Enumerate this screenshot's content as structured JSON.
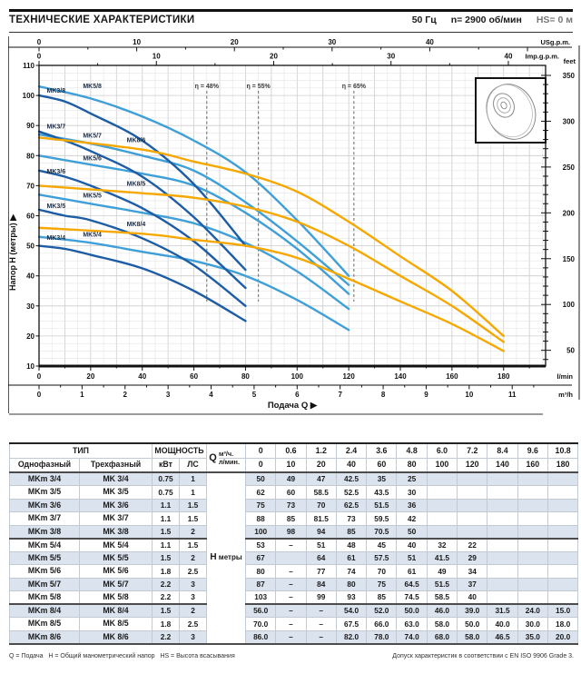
{
  "header": {
    "title": "ТЕХНИЧЕСКИЕ ХАРАКТЕРИСТИКИ",
    "frequency": "50 Гц",
    "speed": "n= 2900 об/мин",
    "suction": "HS= 0 м"
  },
  "chart_data": {
    "type": "line",
    "x_label": "Подача Q",
    "x_arrow": "▶",
    "y_label": "Напор H (метры)",
    "y_arrow": "▶",
    "xlim_lmin": [
      0,
      196
    ],
    "ylim_m": [
      10,
      110
    ],
    "flows_lmin": [
      0,
      10,
      20,
      40,
      60,
      80,
      100,
      120,
      140,
      160,
      180
    ],
    "axes": {
      "top_us": {
        "label": "USg.p.m.",
        "ticks": [
          0,
          10,
          20,
          30,
          40
        ]
      },
      "top_imp": {
        "label": "Imp.g.p.m.",
        "ticks": [
          0,
          10,
          20,
          30,
          40
        ]
      },
      "left": {
        "label": "Напор H (метры)",
        "ticks": [
          110,
          100,
          90,
          80,
          70,
          60,
          50,
          40,
          30,
          20,
          10
        ]
      },
      "right": {
        "label": "feet",
        "ticks": [
          350,
          300,
          250,
          200,
          150,
          100,
          50
        ]
      },
      "bottom_lmin": {
        "label": "l/min",
        "ticks": [
          0,
          20,
          40,
          60,
          80,
          100,
          120,
          140,
          160,
          180
        ]
      },
      "bottom_m3h": {
        "label": "m³/h",
        "ticks": [
          0,
          1,
          2,
          3,
          4,
          5,
          6,
          7,
          8,
          9,
          10,
          11
        ]
      }
    },
    "efficiency_lines": [
      {
        "label": "η = 48%",
        "q_lmin": 65
      },
      {
        "label": "η = 55%",
        "q_lmin": 85
      },
      {
        "label": "η = 65%",
        "q_lmin": 122
      }
    ],
    "colors": {
      "mk3": "#1d5da6",
      "mk5": "#3f9fd8",
      "mk8": "#f6a800"
    },
    "series": [
      {
        "single": "MKm 3/4",
        "three": "MK 3/4",
        "kw": "0.75",
        "hp": "1",
        "group": "mk3",
        "curve_label": "MK3/4",
        "label_q": 3,
        "label_h": 52,
        "heads": [
          "50",
          "49",
          "47",
          "42.5",
          "35",
          "25",
          "",
          "",
          "",
          "",
          ""
        ]
      },
      {
        "single": "MKm 3/5",
        "three": "MK 3/5",
        "kw": "0.75",
        "hp": "1",
        "group": "mk3",
        "curve_label": "MK3/5",
        "label_q": 3,
        "label_h": 62.5,
        "heads": [
          "62",
          "60",
          "58.5",
          "52.5",
          "43.5",
          "30",
          "",
          "",
          "",
          "",
          ""
        ]
      },
      {
        "single": "MKm 3/6",
        "three": "MK 3/6",
        "kw": "1.1",
        "hp": "1.5",
        "group": "mk3",
        "curve_label": "MK3/6",
        "label_q": 3,
        "label_h": 74,
        "heads": [
          "75",
          "73",
          "70",
          "62.5",
          "51.5",
          "36",
          "",
          "",
          "",
          "",
          ""
        ]
      },
      {
        "single": "MKm 3/7",
        "three": "MK 3/7",
        "kw": "1.1",
        "hp": "1.5",
        "group": "mk3",
        "curve_label": "MK3/7",
        "label_q": 3,
        "label_h": 89,
        "heads": [
          "88",
          "85",
          "81.5",
          "73",
          "59.5",
          "42",
          "",
          "",
          "",
          "",
          ""
        ]
      },
      {
        "single": "MKm 3/8",
        "three": "MK 3/8",
        "kw": "1.5",
        "hp": "2",
        "group": "mk3",
        "curve_label": "MK3/8",
        "label_q": 3,
        "label_h": 101,
        "heads": [
          "100",
          "98",
          "94",
          "85",
          "70.5",
          "50",
          "",
          "",
          "",
          "",
          ""
        ]
      },
      {
        "single": "MKm 5/4",
        "three": "MK 5/4",
        "kw": "1.1",
        "hp": "1.5",
        "group": "mk5",
        "curve_label": "MK5/4",
        "label_q": 17,
        "label_h": 53,
        "heads": [
          "53",
          "–",
          "51",
          "48",
          "45",
          "40",
          "32",
          "22",
          "",
          "",
          ""
        ]
      },
      {
        "single": "MKm 5/5",
        "three": "MK 5/5",
        "kw": "1.5",
        "hp": "2",
        "group": "mk5",
        "curve_label": "MK5/5",
        "label_q": 17,
        "label_h": 66,
        "heads": [
          "67",
          "",
          "64",
          "61",
          "57.5",
          "51",
          "41.5",
          "29",
          "",
          "",
          ""
        ]
      },
      {
        "single": "MKm 5/6",
        "three": "MK 5/6",
        "kw": "1.8",
        "hp": "2.5",
        "group": "mk5",
        "curve_label": "MK5/6",
        "label_q": 17,
        "label_h": 78.5,
        "heads": [
          "80",
          "–",
          "77",
          "74",
          "70",
          "61",
          "49",
          "34",
          "",
          "",
          ""
        ]
      },
      {
        "single": "MKm 5/7",
        "three": "MK 5/7",
        "kw": "2.2",
        "hp": "3",
        "group": "mk5",
        "curve_label": "MK5/7",
        "label_q": 17,
        "label_h": 86,
        "heads": [
          "87",
          "–",
          "84",
          "80",
          "75",
          "64.5",
          "51.5",
          "37",
          "",
          "",
          ""
        ]
      },
      {
        "single": "MKm 5/8",
        "three": "MK 5/8",
        "kw": "2.2",
        "hp": "3",
        "group": "mk5",
        "curve_label": "MK5/8",
        "label_q": 17,
        "label_h": 102.5,
        "heads": [
          "103",
          "–",
          "99",
          "93",
          "85",
          "74.5",
          "58.5",
          "40",
          "",
          "",
          ""
        ]
      },
      {
        "single": "MKm 8/4",
        "three": "MK 8/4",
        "kw": "1.5",
        "hp": "2",
        "group": "mk8",
        "curve_label": "MK8/4",
        "label_q": 34,
        "label_h": 56.5,
        "heads": [
          "56.0",
          "–",
          "–",
          "54.0",
          "52.0",
          "50.0",
          "46.0",
          "39.0",
          "31.5",
          "24.0",
          "15.0"
        ]
      },
      {
        "single": "MKm 8/5",
        "three": "MK 8/5",
        "kw": "1.8",
        "hp": "2.5",
        "group": "mk8",
        "curve_label": "MK8/5",
        "label_q": 34,
        "label_h": 70,
        "heads": [
          "70.0",
          "–",
          "–",
          "67.5",
          "66.0",
          "63.0",
          "58.0",
          "50.0",
          "40.0",
          "30.0",
          "18.0"
        ]
      },
      {
        "single": "MKm 8/6",
        "three": "MK 8/6",
        "kw": "2.2",
        "hp": "3",
        "group": "mk8",
        "curve_label": "MK8/6",
        "label_q": 34,
        "label_h": 84.5,
        "heads": [
          "86.0",
          "–",
          "–",
          "82.0",
          "78.0",
          "74.0",
          "68.0",
          "58.0",
          "46.5",
          "35.0",
          "20.0"
        ]
      }
    ]
  },
  "table": {
    "header": {
      "type_group": "ТИП",
      "power_group": "МОЩНОСТЬ",
      "single_phase": "Однофазный",
      "three_phase": "Трехфазный",
      "kw": "кВт",
      "hp": "ЛС",
      "q_label": "Q",
      "m3h_label": "м³/ч.",
      "lmin_label": "л/мин.",
      "m3h_values": [
        "0",
        "0.6",
        "1.2",
        "2.4",
        "3.6",
        "4.8",
        "6.0",
        "7.2",
        "8.4",
        "9.6",
        "10.8"
      ],
      "lmin_values": [
        "0",
        "10",
        "20",
        "40",
        "60",
        "80",
        "100",
        "120",
        "140",
        "160",
        "180"
      ]
    },
    "h_label_main": "H",
    "h_label_sub": "метры"
  },
  "footnotes": {
    "left": "Q = Подача   H = Общий манометрический напор   HS = Высота всасывания",
    "right": "Допуск характеристик в соответствии с EN ISO 9906 Grade 3."
  }
}
